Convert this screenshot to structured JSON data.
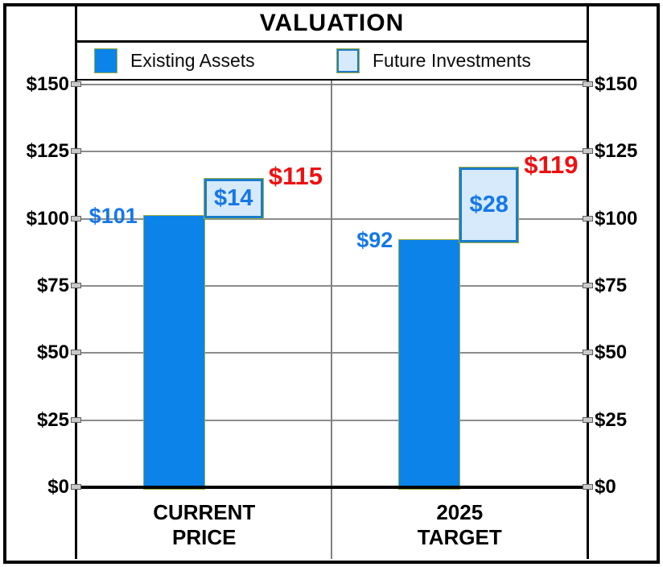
{
  "title": "VALUATION",
  "legend": {
    "items": [
      {
        "label": "Existing Assets"
      },
      {
        "label": "Future Investments"
      }
    ]
  },
  "y_axis": {
    "tick_labels": [
      "$0",
      "$25",
      "$50",
      "$75",
      "$100",
      "$125",
      "$150"
    ],
    "min": 0,
    "max": 150,
    "step": 25,
    "shown_on": "both-sides"
  },
  "chart_data": {
    "type": "bar",
    "subtype": "offset-stacked-waterfall",
    "title": "VALUATION",
    "categories": [
      "CURRENT\nPRICE",
      "2025\nTARGET"
    ],
    "series": [
      {
        "name": "Existing Assets",
        "values": [
          101,
          92
        ],
        "labels": [
          "$101",
          "$92"
        ]
      },
      {
        "name": "Future Investments",
        "values": [
          14,
          28
        ],
        "labels": [
          "$14",
          "$28"
        ]
      }
    ],
    "totals": {
      "values": [
        115,
        119
      ],
      "labels": [
        "$115",
        "$119"
      ]
    },
    "ylim": [
      0,
      150
    ],
    "ytick_step": 25,
    "grid": "horizontal",
    "legend_position": "top"
  },
  "colors": {
    "bar_blue": "#0c83e9",
    "light_blue_fill": "#d6eafb",
    "box_border_blue": "#1b7ccc",
    "olive_outline": "#9aad3f",
    "value_label_blue": "#1478e8",
    "total_label_red": "#ee1111",
    "grid_gray": "#8c8c8c",
    "axis_black": "#000000"
  }
}
